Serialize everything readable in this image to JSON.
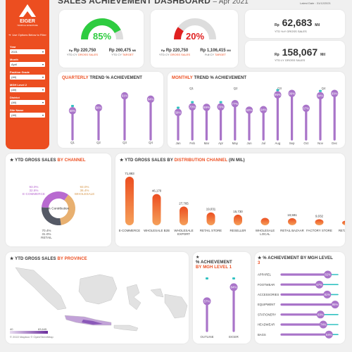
{
  "header": {
    "title": "SALES ACHIEVEMENT DASHBOARD",
    "subtitle": "– Apr 2021",
    "latest_date": "Latest Date : 31/12/2021"
  },
  "sidebar": {
    "logo_text": "EIGER",
    "logo_sub": "TROPICAL ADVENTURE",
    "note": "Use Options Below to Filter",
    "filters": [
      {
        "label": "Year",
        "value": "2021"
      },
      {
        "label": "Month",
        "value": "April"
      },
      {
        "label": "Fashion Grade",
        "value": "(All)"
      },
      {
        "label": "MGH Level 2",
        "value": "(All)"
      },
      {
        "label": "District",
        "value": "(All)"
      },
      {
        "label": "Site Name",
        "value": "(All)"
      }
    ]
  },
  "kpi": {
    "gauge1": {
      "pct": "85%",
      "value": 85,
      "color": "#2ecc40",
      "left_val": "Rp 220,750",
      "left_unit": "Mil",
      "left_lbl": "YTD CY",
      "left_lbl2": "GROSS SALES",
      "right_val": "Rp 260,475",
      "right_unit": "Mil",
      "right_lbl": "YTD CY",
      "right_lbl2": "TARGET"
    },
    "gauge2": {
      "pct": "20%",
      "value": 20,
      "color": "#e02020",
      "left_val": "Rp 220,750",
      "left_unit": "Mil",
      "left_lbl": "YTD CY",
      "left_lbl2": "GROSS SALES",
      "right_val": "Rp 1,106,415",
      "right_unit": "Mil",
      "right_lbl": "Full CY",
      "right_lbl2": "TARGET"
    },
    "yoy": {
      "prefix": "Rp",
      "value": "62,683",
      "unit": "Mil",
      "label": "YTD YoY GROSS SALES"
    },
    "ly": {
      "prefix": "Rp",
      "value": "158,067",
      "unit": "Mil",
      "label": "YTD LY GROSS SALES"
    }
  },
  "quarterly": {
    "title_a": "QUARTERLY",
    "title_b": "TREND % ACHIEVEMENT"
  },
  "monthly": {
    "title_a": "MONTHLY",
    "title_b": "TREND % ACHIEVEMENT"
  },
  "channel": {
    "title_a": "YTD GROSS SALES",
    "title_b": "BY CHANNEL",
    "center": "% Contribution"
  },
  "distribution": {
    "title_a": "YTD GROSS SALES BY",
    "title_b": "DISTRIBUTION CHANNEL",
    "title_c": "(IN MIL)"
  },
  "province": {
    "title_a": "YTD GROSS SALES",
    "title_b": "BY PROVINCE",
    "legend_min": "40",
    "legend_max": "83,645",
    "credit": "© 2022 Mapbox © OpenStreetMap"
  },
  "mgh1": {
    "title_a": "% ACHIEVEMENT",
    "title_b": "BY MGH LEVEL 1"
  },
  "mgh3": {
    "title_a": "% ACHIEVEMENT BY MGH LEVEL",
    "title_b": "3"
  },
  "chart_data": [
    {
      "type": "lollipop",
      "name": "quarterly",
      "categories": [
        "Q1",
        "Q2",
        "Q3",
        "Q4"
      ],
      "values": [
        60,
        66,
        91,
        84
      ],
      "labels": [
        "60%",
        "66%",
        "91%",
        "84%"
      ],
      "highlight": [
        0
      ]
    },
    {
      "type": "lollipop",
      "name": "monthly",
      "quarters": [
        "Q1",
        "Q2",
        "Q3",
        "Q4"
      ],
      "categories": [
        "Jan",
        "Feb",
        "Mar",
        "Apr",
        "May",
        "Jun",
        "Jul",
        "Aug",
        "Sep",
        "Oct",
        "Nov",
        "Dec"
      ],
      "values": [
        58,
        70,
        69,
        70,
        77,
        63,
        64,
        96,
        99,
        67,
        94,
        99
      ],
      "labels": [
        "58%",
        "70%",
        "69%",
        "70%",
        "77%",
        "63%",
        "64%",
        "96%",
        "99%",
        "67%",
        "94%",
        "99%"
      ],
      "highlight": [
        0,
        1,
        3,
        7,
        10
      ]
    },
    {
      "type": "pie",
      "name": "channel",
      "categories": [
        "E-COMMERCE",
        "WHOLESALE",
        "RETAIL"
      ],
      "values": [
        32.6,
        36.4,
        31.0
      ],
      "labels": [
        [
          "93.0%",
          "32.6%"
        ],
        [
          "93.0%",
          "36.4%"
        ],
        [
          "70.4%",
          "31.0%"
        ]
      ],
      "colors": [
        "#b86ad0",
        "#e8b070",
        "#555a66"
      ]
    },
    {
      "type": "bar",
      "name": "distribution",
      "categories": [
        "E-COMMERCE",
        "WHOLESALE B2B",
        "WHOLESALE EXPORT",
        "RETAIL STORE",
        "RESELLER",
        "WHOLESALE LOCAL",
        "RETAIL BAZAAR",
        "FACTORY STORE",
        "RETAIL SH"
      ],
      "values": [
        71883,
        46170,
        27765,
        19031,
        15730,
        11000,
        10591,
        9032,
        7000
      ],
      "labels": [
        "71,883",
        "46,170",
        "27,765",
        "19,031",
        "15,730",
        "",
        "10,591",
        "9,032",
        ""
      ]
    },
    {
      "type": "lollipop",
      "name": "mgh1",
      "categories": [
        "OUTLINE",
        "EIGER"
      ],
      "values": [
        57,
        84
      ],
      "labels": [
        "57%",
        "84%"
      ]
    },
    {
      "type": "bar",
      "name": "mgh3",
      "categories": [
        "APPAREL",
        "FOOTWEAR",
        "ACCESSORIES",
        "EQUIPMENT",
        "STATIONERY",
        "HEADWEAR",
        "BAGS"
      ],
      "values": [
        82,
        67,
        81,
        95,
        69,
        74,
        84
      ],
      "labels": [
        "82%",
        "67%",
        "81%",
        "95%",
        "69%",
        "74%",
        "84%"
      ]
    }
  ]
}
